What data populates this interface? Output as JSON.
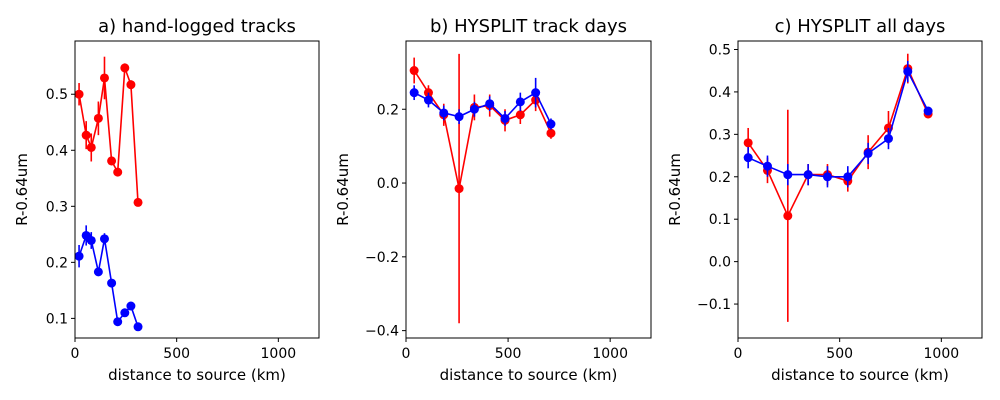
{
  "chart_data": [
    {
      "type": "line",
      "title": "a) hand-logged tracks",
      "xlabel": "distance to source (km)",
      "ylabel": "R-0.64um",
      "xlim": [
        0,
        1200
      ],
      "ylim": [
        0.065,
        0.595
      ],
      "xticks": [
        0,
        500,
        1000
      ],
      "yticks": [
        0.1,
        0.2,
        0.3,
        0.4,
        0.5
      ],
      "yticklabels": [
        "0.1",
        "0.2",
        "0.3",
        "0.4",
        "0.5"
      ],
      "series": [
        {
          "name": "red",
          "color": "#ff0000",
          "x": [
            20,
            55,
            80,
            115,
            145,
            180,
            210,
            245,
            275,
            310
          ],
          "y": [
            0.5,
            0.427,
            0.405,
            0.457,
            0.529,
            0.381,
            0.361,
            0.547,
            0.517,
            0.307
          ],
          "err": [
            0.02,
            0.025,
            0.025,
            0.03,
            0.038,
            0.008,
            0.006,
            0.008,
            0.008,
            0.005
          ]
        },
        {
          "name": "blue",
          "color": "#0000ff",
          "x": [
            20,
            55,
            80,
            115,
            145,
            180,
            210,
            245,
            275,
            310
          ],
          "y": [
            0.211,
            0.248,
            0.239,
            0.183,
            0.242,
            0.163,
            0.094,
            0.11,
            0.122,
            0.085
          ],
          "err": [
            0.02,
            0.018,
            0.015,
            0.006,
            0.01,
            0.006,
            0.005,
            0.005,
            0.005,
            0.005
          ]
        }
      ]
    },
    {
      "type": "line",
      "title": "b) HYSPLIT track days",
      "xlabel": "distance to source (km)",
      "ylabel": "R-0.64um",
      "xlim": [
        0,
        1200
      ],
      "ylim": [
        -0.42,
        0.385
      ],
      "xticks": [
        0,
        500,
        1000
      ],
      "yticks": [
        -0.4,
        -0.2,
        0.0,
        0.2
      ],
      "yticklabels": [
        "−0.4",
        "−0.2",
        "0.0",
        "0.2"
      ],
      "series": [
        {
          "name": "red",
          "color": "#ff0000",
          "x": [
            40,
            110,
            185,
            260,
            335,
            410,
            485,
            560,
            635,
            710
          ],
          "y": [
            0.305,
            0.245,
            0.185,
            -0.015,
            0.205,
            0.21,
            0.17,
            0.185,
            0.225,
            0.135
          ],
          "err": [
            0.035,
            0.02,
            0.03,
            0.365,
            0.035,
            0.03,
            0.03,
            0.025,
            0.03,
            0.015
          ]
        },
        {
          "name": "blue",
          "color": "#0000ff",
          "x": [
            40,
            110,
            185,
            260,
            335,
            410,
            485,
            560,
            635,
            710
          ],
          "y": [
            0.245,
            0.225,
            0.19,
            0.18,
            0.2,
            0.215,
            0.175,
            0.22,
            0.245,
            0.16
          ],
          "err": [
            0.02,
            0.02,
            0.02,
            0.02,
            0.02,
            0.02,
            0.02,
            0.025,
            0.04,
            0.015
          ]
        }
      ]
    },
    {
      "type": "line",
      "title": "c) HYSPLIT all days",
      "xlabel": "distance to source (km)",
      "ylabel": "R-0.64um",
      "xlim": [
        0,
        1200
      ],
      "ylim": [
        -0.18,
        0.52
      ],
      "xticks": [
        0,
        500,
        1000
      ],
      "yticks": [
        -0.1,
        0.0,
        0.1,
        0.2,
        0.3,
        0.4,
        0.5
      ],
      "yticklabels": [
        "−0.1",
        "0.0",
        "0.1",
        "0.2",
        "0.3",
        "0.4",
        "0.5"
      ],
      "series": [
        {
          "name": "red",
          "color": "#ff0000",
          "x": [
            50,
            145,
            245,
            345,
            440,
            540,
            640,
            740,
            835,
            935
          ],
          "y": [
            0.28,
            0.215,
            0.108,
            0.205,
            0.205,
            0.19,
            0.258,
            0.315,
            0.455,
            0.348
          ],
          "err": [
            0.035,
            0.03,
            0.25,
            0.025,
            0.025,
            0.025,
            0.04,
            0.04,
            0.035,
            0.01
          ]
        },
        {
          "name": "blue",
          "color": "#0000ff",
          "x": [
            50,
            145,
            245,
            345,
            440,
            540,
            640,
            740,
            835,
            935
          ],
          "y": [
            0.245,
            0.225,
            0.205,
            0.205,
            0.2,
            0.2,
            0.255,
            0.29,
            0.448,
            0.355
          ],
          "err": [
            0.025,
            0.025,
            0.025,
            0.025,
            0.025,
            0.025,
            0.025,
            0.025,
            0.025,
            0.008
          ]
        }
      ]
    }
  ]
}
